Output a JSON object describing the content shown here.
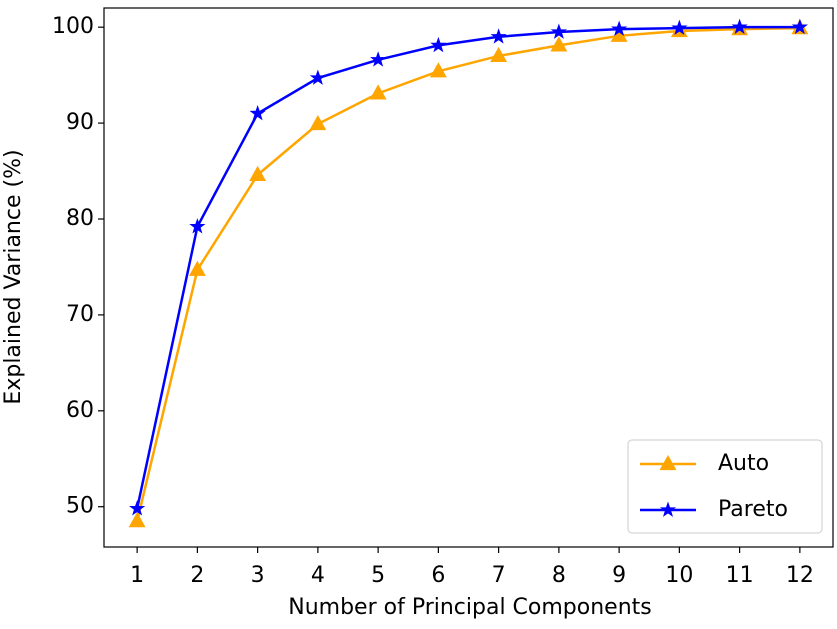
{
  "chart_data": {
    "type": "line",
    "x_label": "Number of Principal Components",
    "y_label": "Explained Variance (%)",
    "x": [
      1,
      2,
      3,
      4,
      5,
      6,
      7,
      8,
      9,
      10,
      11,
      12
    ],
    "series": [
      {
        "name": "Auto",
        "color": "#ffa500",
        "marker": "triangle",
        "values": [
          48.5,
          74.7,
          84.6,
          89.9,
          93.1,
          95.4,
          97.0,
          98.1,
          99.1,
          99.6,
          99.8,
          99.9
        ]
      },
      {
        "name": "Pareto",
        "color": "#0000ff",
        "marker": "star",
        "values": [
          49.8,
          79.2,
          91.0,
          94.7,
          96.6,
          98.1,
          99.0,
          99.5,
          99.8,
          99.9,
          100.0,
          100.0
        ]
      }
    ],
    "xlim": [
      0.45,
      12.55
    ],
    "ylim": [
      45.8,
      102.0
    ],
    "xticks": [
      1,
      2,
      3,
      4,
      5,
      6,
      7,
      8,
      9,
      10,
      11,
      12
    ],
    "yticks": [
      50,
      60,
      70,
      80,
      90,
      100
    ],
    "grid": false,
    "legend": "lower right"
  }
}
